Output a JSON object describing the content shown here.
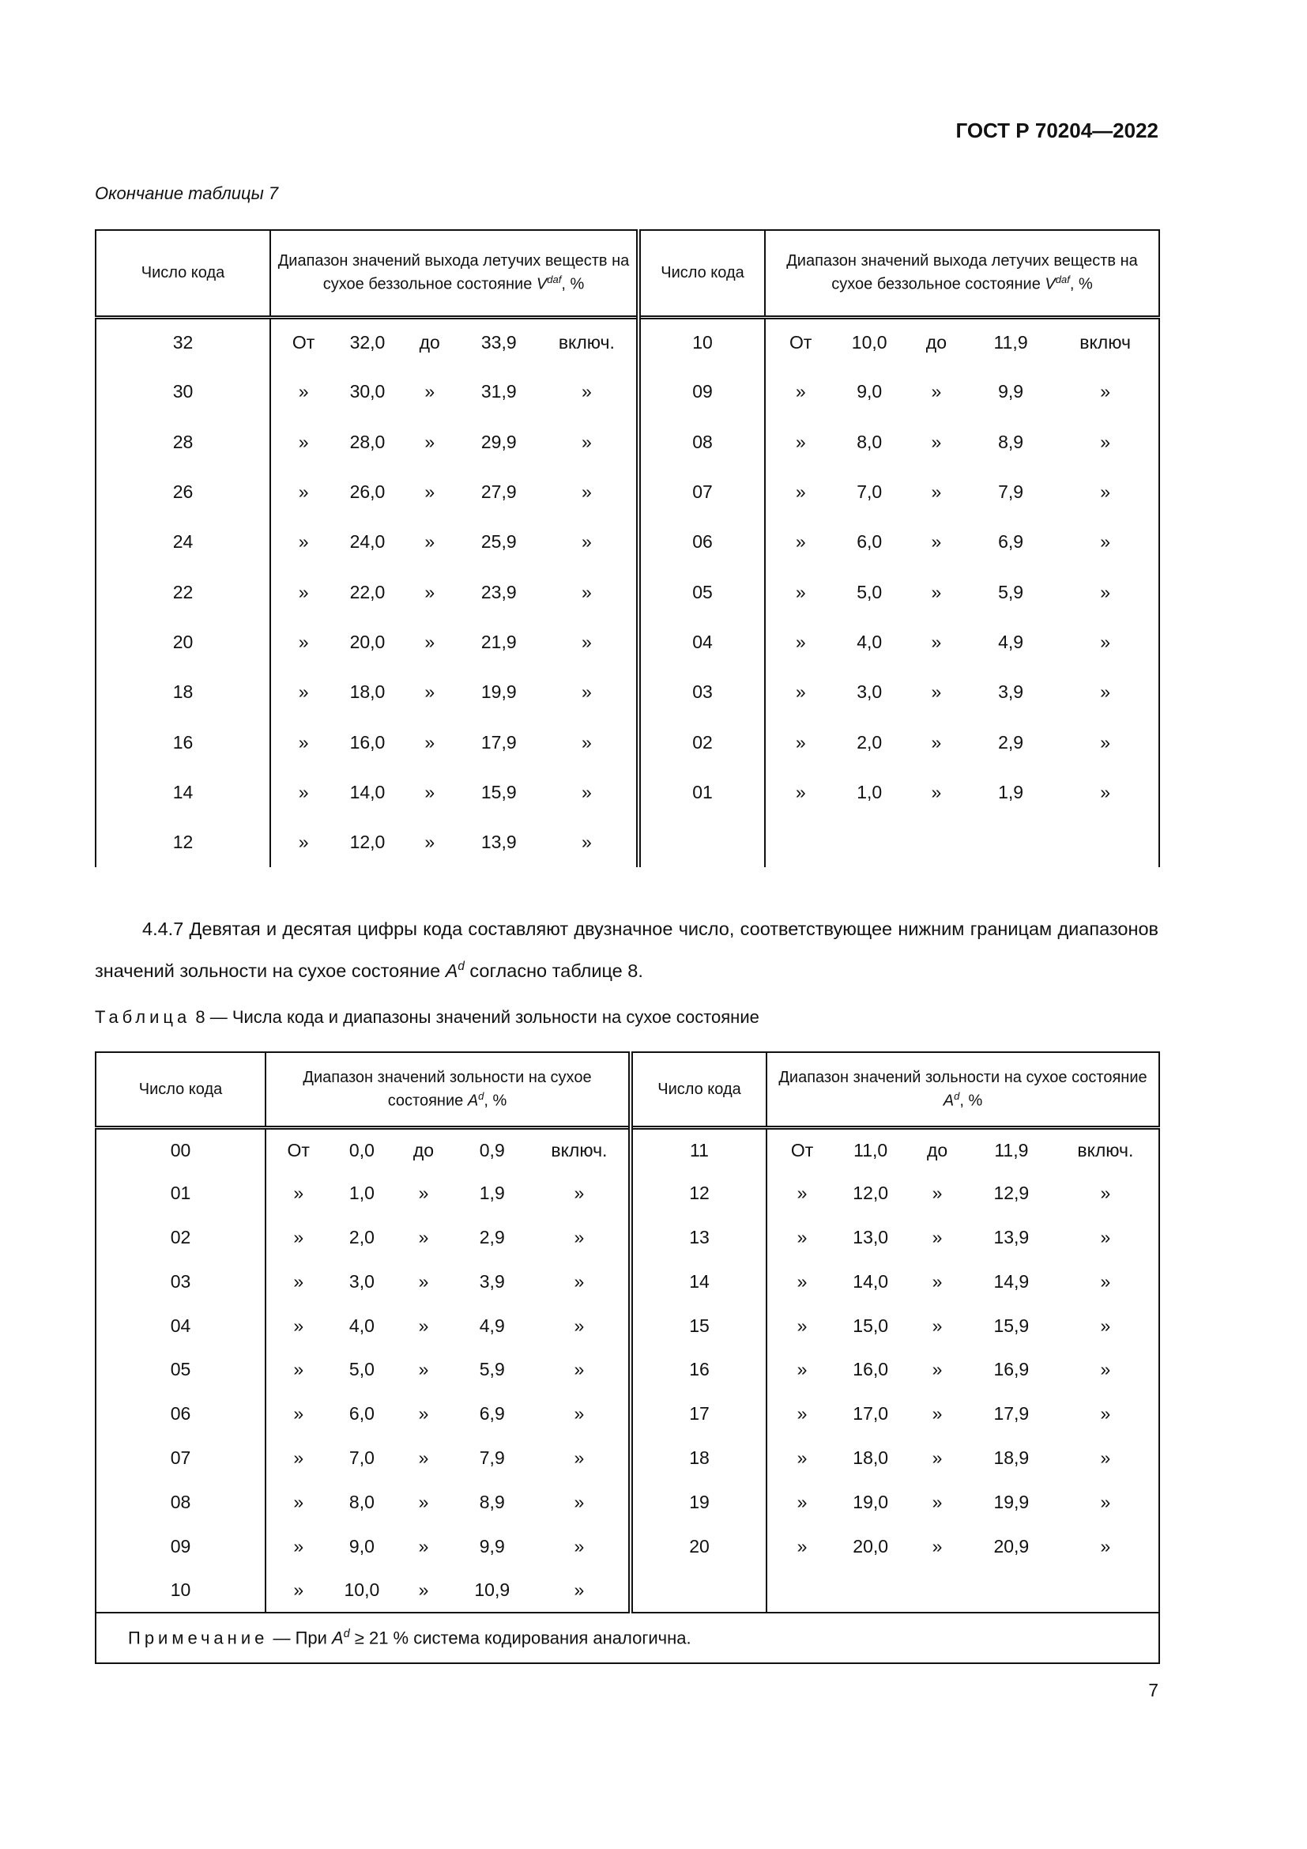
{
  "header": {
    "doc_id": "ГОСТ Р 70204—2022"
  },
  "table7": {
    "continuation": "Окончание таблицы 7",
    "col_code": "Число кода",
    "col_range": "Диапазон значений выхода летучих веществ на сухое беззольное состояние",
    "col_range_symbol": "V",
    "col_range_sup": "daf",
    "col_range_unit": ", %",
    "left_rows": [
      [
        "32",
        "От",
        "32,0",
        "до",
        "33,9",
        "включ."
      ],
      [
        "30",
        "»",
        "30,0",
        "»",
        "31,9",
        "»"
      ],
      [
        "28",
        "»",
        "28,0",
        "»",
        "29,9",
        "»"
      ],
      [
        "26",
        "»",
        "26,0",
        "»",
        "27,9",
        "»"
      ],
      [
        "24",
        "»",
        "24,0",
        "»",
        "25,9",
        "»"
      ],
      [
        "22",
        "»",
        "22,0",
        "»",
        "23,9",
        "»"
      ],
      [
        "20",
        "»",
        "20,0",
        "»",
        "21,9",
        "»"
      ],
      [
        "18",
        "»",
        "18,0",
        "»",
        "19,9",
        "»"
      ],
      [
        "16",
        "»",
        "16,0",
        "»",
        "17,9",
        "»"
      ],
      [
        "14",
        "»",
        "14,0",
        "»",
        "15,9",
        "»"
      ],
      [
        "12",
        "»",
        "12,0",
        "»",
        "13,9",
        "»"
      ]
    ],
    "right_rows": [
      [
        "10",
        "От",
        "10,0",
        "до",
        "11,9",
        "включ"
      ],
      [
        "09",
        "»",
        "9,0",
        "»",
        "9,9",
        "»"
      ],
      [
        "08",
        "»",
        "8,0",
        "»",
        "8,9",
        "»"
      ],
      [
        "07",
        "»",
        "7,0",
        "»",
        "7,9",
        "»"
      ],
      [
        "06",
        "»",
        "6,0",
        "»",
        "6,9",
        "»"
      ],
      [
        "05",
        "»",
        "5,0",
        "»",
        "5,9",
        "»"
      ],
      [
        "04",
        "»",
        "4,0",
        "»",
        "4,9",
        "»"
      ],
      [
        "03",
        "»",
        "3,0",
        "»",
        "3,9",
        "»"
      ],
      [
        "02",
        "»",
        "2,0",
        "»",
        "2,9",
        "»"
      ],
      [
        "01",
        "»",
        "1,0",
        "»",
        "1,9",
        "»"
      ],
      [
        "",
        "",
        "",
        "",
        "",
        ""
      ]
    ]
  },
  "paragraph": {
    "text_before": "4.4.7 Девятая и десятая цифры кода составляют двузначное число, соответствующее нижним границам диапазонов значений зольности на сухое состояние ",
    "symbol": "A",
    "sup": "d",
    "text_after": " согласно таблице 8."
  },
  "table8": {
    "caption_word": "Таблица",
    "caption_rest": " 8 — Числа кода и диапазоны значений зольности на сухое состояние",
    "col_code": "Число кода",
    "col_range": "Диапазон значений зольности на сухое состояние ",
    "col_range_symbol": "A",
    "col_range_sup": "d",
    "col_range_unit": ", %",
    "left_rows": [
      [
        "00",
        "От",
        "0,0",
        "до",
        "0,9",
        "включ."
      ],
      [
        "01",
        "»",
        "1,0",
        "»",
        "1,9",
        "»"
      ],
      [
        "02",
        "»",
        "2,0",
        "»",
        "2,9",
        "»"
      ],
      [
        "03",
        "»",
        "3,0",
        "»",
        "3,9",
        "»"
      ],
      [
        "04",
        "»",
        "4,0",
        "»",
        "4,9",
        "»"
      ],
      [
        "05",
        "»",
        "5,0",
        "»",
        "5,9",
        "»"
      ],
      [
        "06",
        "»",
        "6,0",
        "»",
        "6,9",
        "»"
      ],
      [
        "07",
        "»",
        "7,0",
        "»",
        "7,9",
        "»"
      ],
      [
        "08",
        "»",
        "8,0",
        "»",
        "8,9",
        "»"
      ],
      [
        "09",
        "»",
        "9,0",
        "»",
        "9,9",
        "»"
      ],
      [
        "10",
        "»",
        "10,0",
        "»",
        "10,9",
        "»"
      ]
    ],
    "right_rows": [
      [
        "11",
        "От",
        "11,0",
        "до",
        "11,9",
        "включ."
      ],
      [
        "12",
        "»",
        "12,0",
        "»",
        "12,9",
        "»"
      ],
      [
        "13",
        "»",
        "13,0",
        "»",
        "13,9",
        "»"
      ],
      [
        "14",
        "»",
        "14,0",
        "»",
        "14,9",
        "»"
      ],
      [
        "15",
        "»",
        "15,0",
        "»",
        "15,9",
        "»"
      ],
      [
        "16",
        "»",
        "16,0",
        "»",
        "16,9",
        "»"
      ],
      [
        "17",
        "»",
        "17,0",
        "»",
        "17,9",
        "»"
      ],
      [
        "18",
        "»",
        "18,0",
        "»",
        "18,9",
        "»"
      ],
      [
        "19",
        "»",
        "19,0",
        "»",
        "19,9",
        "»"
      ],
      [
        "20",
        "»",
        "20,0",
        "»",
        "20,9",
        "»"
      ],
      [
        "",
        "",
        "",
        "",
        "",
        ""
      ]
    ],
    "note_label": "Примечание",
    "note_before": " — При ",
    "note_symbol": "A",
    "note_sup": "d",
    "note_after": " ≥ 21 % система кодирования аналогична."
  },
  "page_number": "7"
}
